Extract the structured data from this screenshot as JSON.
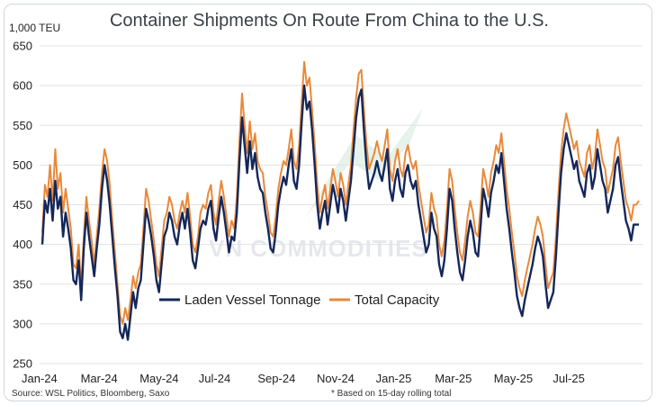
{
  "chart_data": {
    "type": "line",
    "title": "Container Shipments On Route From China to the U.S.",
    "unit_label": "1,000 TEU",
    "xlabel": "",
    "ylabel": "",
    "ylim": [
      250,
      650
    ],
    "yticks": [
      250,
      300,
      350,
      400,
      450,
      500,
      550,
      600,
      650
    ],
    "xticks": [
      "Jan-24",
      "Mar-24",
      "May-24",
      "Jul-24",
      "Sep-24",
      "Nov-24",
      "Jan-25",
      "Mar-25",
      "May-25",
      "Jul-25"
    ],
    "grid": "horizontal",
    "legend_position": "bottom-left",
    "source": "Source: WSL Politics, Bloomberg, Saxo",
    "footnote": "* Based on 15-day rolling total",
    "watermark": "VN COMMODITIES",
    "series": [
      {
        "name": "Laden Vessel Tonnage",
        "color": "#14275a",
        "values": [
          400,
          455,
          440,
          470,
          430,
          480,
          445,
          460,
          410,
          440,
          420,
          395,
          355,
          350,
          380,
          330,
          395,
          440,
          410,
          385,
          360,
          395,
          425,
          470,
          500,
          480,
          450,
          410,
          370,
          335,
          290,
          282,
          300,
          280,
          310,
          340,
          320,
          345,
          355,
          400,
          445,
          430,
          410,
          385,
          355,
          340,
          375,
          410,
          420,
          440,
          430,
          410,
          400,
          425,
          440,
          420,
          445,
          415,
          380,
          370,
          395,
          420,
          430,
          425,
          445,
          455,
          420,
          405,
          435,
          460,
          440,
          415,
          390,
          410,
          405,
          440,
          505,
          560,
          525,
          490,
          530,
          495,
          515,
          485,
          470,
          465,
          440,
          420,
          395,
          390,
          415,
          450,
          470,
          485,
          475,
          500,
          520,
          480,
          470,
          500,
          555,
          600,
          570,
          580,
          545,
          500,
          450,
          420,
          440,
          455,
          425,
          450,
          475,
          460,
          440,
          470,
          455,
          430,
          455,
          480,
          520,
          560,
          585,
          595,
          545,
          500,
          470,
          480,
          490,
          505,
          490,
          480,
          500,
          520,
          470,
          455,
          480,
          495,
          470,
          460,
          490,
          500,
          480,
          470,
          480,
          450,
          430,
          410,
          390,
          400,
          440,
          420,
          410,
          375,
          360,
          380,
          420,
          470,
          455,
          420,
          390,
          365,
          355,
          380,
          410,
          430,
          415,
          390,
          385,
          425,
          470,
          455,
          435,
          465,
          480,
          500,
          490,
          515,
          480,
          445,
          420,
          390,
          365,
          335,
          320,
          310,
          330,
          345,
          360,
          375,
          395,
          410,
          400,
          385,
          350,
          320,
          330,
          340,
          385,
          440,
          490,
          520,
          540,
          525,
          510,
          495,
          505,
          480,
          470,
          460,
          490,
          500,
          470,
          485,
          520,
          500,
          480,
          470,
          440,
          455,
          470,
          500,
          510,
          480,
          455,
          430,
          420,
          405,
          425,
          425,
          425
        ]
      },
      {
        "name": "Total Capacity",
        "color": "#e8893a",
        "values": [
          415,
          475,
          460,
          500,
          455,
          520,
          470,
          490,
          440,
          470,
          445,
          420,
          375,
          370,
          400,
          345,
          410,
          460,
          430,
          405,
          375,
          410,
          445,
          490,
          520,
          505,
          475,
          430,
          390,
          350,
          310,
          300,
          320,
          305,
          330,
          360,
          345,
          365,
          375,
          420,
          470,
          455,
          430,
          405,
          375,
          360,
          395,
          430,
          440,
          460,
          450,
          430,
          420,
          440,
          455,
          440,
          465,
          435,
          400,
          390,
          410,
          440,
          450,
          445,
          465,
          475,
          440,
          425,
          455,
          480,
          460,
          435,
          410,
          430,
          420,
          460,
          530,
          590,
          550,
          515,
          555,
          520,
          540,
          505,
          495,
          490,
          460,
          440,
          415,
          410,
          435,
          470,
          490,
          505,
          500,
          520,
          545,
          505,
          495,
          525,
          580,
          630,
          600,
          610,
          570,
          525,
          475,
          440,
          460,
          475,
          445,
          470,
          495,
          480,
          460,
          490,
          475,
          450,
          475,
          500,
          545,
          585,
          615,
          620,
          570,
          525,
          495,
          505,
          515,
          530,
          515,
          505,
          525,
          545,
          495,
          480,
          505,
          520,
          495,
          485,
          515,
          525,
          505,
          495,
          505,
          475,
          455,
          435,
          415,
          425,
          465,
          445,
          435,
          400,
          385,
          405,
          445,
          495,
          480,
          445,
          415,
          390,
          380,
          405,
          435,
          455,
          440,
          415,
          410,
          450,
          495,
          480,
          460,
          490,
          505,
          525,
          515,
          540,
          505,
          470,
          445,
          415,
          390,
          360,
          345,
          335,
          355,
          370,
          385,
          400,
          420,
          435,
          425,
          410,
          375,
          345,
          355,
          365,
          410,
          465,
          515,
          545,
          565,
          550,
          535,
          520,
          530,
          505,
          495,
          485,
          515,
          525,
          495,
          510,
          545,
          525,
          505,
          495,
          465,
          480,
          495,
          525,
          535,
          505,
          480,
          455,
          445,
          430,
          450,
          450,
          455
        ]
      }
    ]
  }
}
